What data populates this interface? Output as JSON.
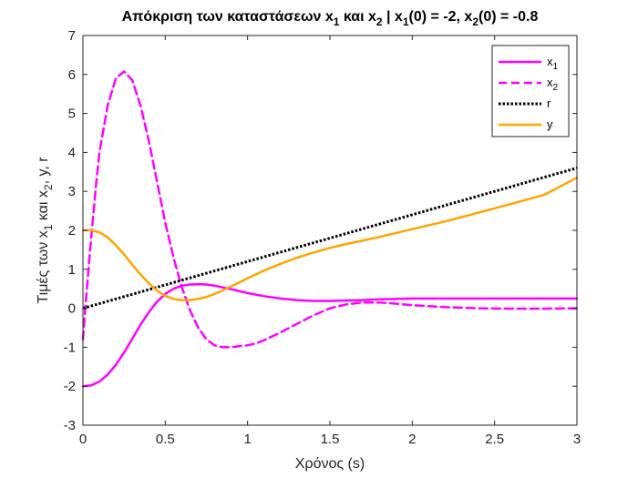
{
  "chart_data": {
    "type": "line",
    "title": {
      "main": "Απόκριση των καταστάσεων x",
      "sub1": "1",
      "mid1": " και x",
      "sub2": "2",
      "mid2": " | x",
      "sub3": "1",
      "mid3": "(0) = -2, x",
      "sub4": "2",
      "end": "(0) = -0.8"
    },
    "xlabel": "Χρόνος (s)",
    "ylabel": {
      "p1": "Τιμές των x",
      "s1": "1",
      "p2": " και x",
      "s2": "2",
      "p3": ", y, r"
    },
    "xlim": [
      0,
      3
    ],
    "ylim": [
      -3,
      7
    ],
    "xticks": [
      0,
      0.5,
      1,
      1.5,
      2,
      2.5,
      3
    ],
    "xtick_labels": [
      "0",
      "0.5",
      "1",
      "1.5",
      "2",
      "2.5",
      "3"
    ],
    "yticks": [
      -3,
      -2,
      -1,
      0,
      1,
      2,
      3,
      4,
      5,
      6,
      7
    ],
    "ytick_labels": [
      "-3",
      "-2",
      "-1",
      "0",
      "1",
      "2",
      "3",
      "4",
      "5",
      "6",
      "7"
    ],
    "grid": false,
    "legend_position": "top-right",
    "series": [
      {
        "name": "x",
        "name_sub": "1",
        "color": "#ff00ff",
        "style": "solid",
        "width": 2.5,
        "x": [
          0,
          0.05,
          0.1,
          0.15,
          0.2,
          0.25,
          0.3,
          0.35,
          0.4,
          0.45,
          0.5,
          0.55,
          0.6,
          0.65,
          0.7,
          0.75,
          0.8,
          0.9,
          1.0,
          1.1,
          1.2,
          1.3,
          1.4,
          1.5,
          1.6,
          1.7,
          1.8,
          2.0,
          2.2,
          2.4,
          2.6,
          2.8,
          3.0
        ],
        "y": [
          -2,
          -1.98,
          -1.88,
          -1.7,
          -1.45,
          -1.13,
          -0.78,
          -0.42,
          -0.1,
          0.17,
          0.37,
          0.5,
          0.58,
          0.61,
          0.62,
          0.61,
          0.58,
          0.49,
          0.39,
          0.31,
          0.25,
          0.21,
          0.19,
          0.19,
          0.2,
          0.21,
          0.23,
          0.25,
          0.25,
          0.25,
          0.25,
          0.25,
          0.25
        ]
      },
      {
        "name": "x",
        "name_sub": "2",
        "color": "#ff00ff",
        "style": "dashed",
        "width": 2.5,
        "x": [
          0,
          0.02,
          0.05,
          0.08,
          0.1,
          0.15,
          0.2,
          0.25,
          0.3,
          0.35,
          0.4,
          0.45,
          0.5,
          0.55,
          0.6,
          0.65,
          0.7,
          0.75,
          0.8,
          0.85,
          0.9,
          0.95,
          1.0,
          1.05,
          1.1,
          1.2,
          1.3,
          1.4,
          1.5,
          1.6,
          1.7,
          1.8,
          1.9,
          2.0,
          2.2,
          2.4,
          2.6,
          2.8,
          3.0
        ],
        "y": [
          -0.8,
          0.3,
          1.8,
          3.2,
          4.0,
          5.2,
          5.9,
          6.08,
          5.85,
          5.2,
          4.3,
          3.25,
          2.2,
          1.3,
          0.55,
          -0.05,
          -0.5,
          -0.8,
          -0.95,
          -1.0,
          -1.0,
          -0.97,
          -0.95,
          -0.9,
          -0.82,
          -0.62,
          -0.4,
          -0.18,
          0.0,
          0.1,
          0.15,
          0.15,
          0.12,
          0.08,
          0.03,
          0.0,
          -0.01,
          -0.01,
          0.0
        ]
      },
      {
        "name": "r",
        "name_sub": "",
        "color": "#000000",
        "style": "dotted",
        "width": 3,
        "x": [
          0,
          3
        ],
        "y": [
          0,
          3.6
        ]
      },
      {
        "name": "y",
        "name_sub": "",
        "color": "#ffa500",
        "style": "solid",
        "width": 2.5,
        "x": [
          0,
          0.05,
          0.1,
          0.15,
          0.2,
          0.25,
          0.3,
          0.35,
          0.4,
          0.45,
          0.5,
          0.55,
          0.6,
          0.65,
          0.7,
          0.75,
          0.8,
          0.85,
          0.9,
          1.0,
          1.1,
          1.2,
          1.3,
          1.4,
          1.5,
          1.6,
          1.7,
          1.8,
          2.0,
          2.2,
          2.4,
          2.6,
          2.8,
          3.0
        ],
        "y": [
          2.0,
          2.0,
          1.95,
          1.82,
          1.62,
          1.38,
          1.12,
          0.87,
          0.64,
          0.45,
          0.32,
          0.24,
          0.21,
          0.21,
          0.24,
          0.29,
          0.37,
          0.46,
          0.56,
          0.77,
          0.97,
          1.14,
          1.3,
          1.43,
          1.55,
          1.65,
          1.74,
          1.83,
          2.03,
          2.23,
          2.45,
          2.68,
          2.91,
          3.35
        ]
      }
    ]
  }
}
